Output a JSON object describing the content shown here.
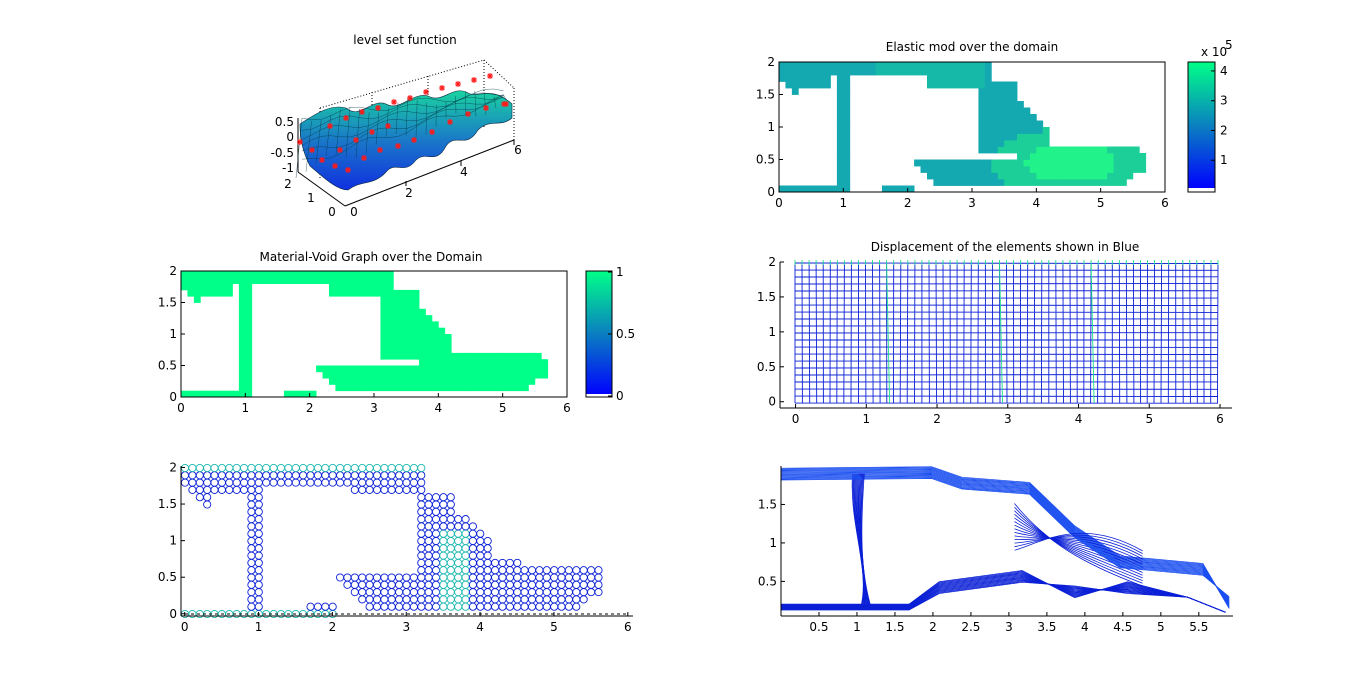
{
  "window": {
    "background": "#ffffff"
  },
  "colors": {
    "material": "#00ff88",
    "elastic_mid": "#14a8b0",
    "elastic_hot": "#22f28a",
    "mesh_blue": "#0a1fd6",
    "arrow_green": "#19e08a",
    "marker_red": "#ff1a1a",
    "colorbar_low": "#0000ff",
    "colorbar_high": "#00ff88"
  },
  "chart_data": [
    {
      "id": "level_set",
      "type": "surface3d",
      "title": "level set function",
      "x_ticks": [
        "2",
        "4",
        "6"
      ],
      "y_ticks": [
        "0",
        "1",
        "2"
      ],
      "z_ticks": [
        "0.5",
        "0",
        "-0.5",
        "-1"
      ],
      "x_zero": "0",
      "xlim": [
        0,
        6
      ],
      "ylim": [
        0,
        2
      ],
      "zlim": [
        -1,
        0.5
      ],
      "markers": "red asterisks (level set points)"
    },
    {
      "id": "elastic_mod",
      "type": "heatmap",
      "title": "Elastic mod over the domain",
      "x_ticks": [
        "0",
        "1",
        "2",
        "3",
        "4",
        "5",
        "6"
      ],
      "y_ticks": [
        "0",
        "0.5",
        "1",
        "1.5",
        "2"
      ],
      "xlim": [
        0,
        6
      ],
      "ylim": [
        0,
        2
      ],
      "colorbar": {
        "ticks": [
          "1",
          "2",
          "3",
          "4"
        ],
        "exponent_base": "x 10",
        "exponent": "5",
        "range": [
          0,
          430000
        ]
      }
    },
    {
      "id": "material_void",
      "type": "heatmap",
      "title": "Material-Void Graph over the Domain",
      "x_ticks": [
        "0",
        "1",
        "2",
        "3",
        "4",
        "5",
        "6"
      ],
      "y_ticks": [
        "0",
        "0.5",
        "1",
        "1.5",
        "2"
      ],
      "xlim": [
        0,
        6
      ],
      "ylim": [
        0,
        2
      ],
      "colorbar": {
        "ticks": [
          "0",
          "0.5",
          "1"
        ],
        "range": [
          0,
          1
        ]
      }
    },
    {
      "id": "displacement",
      "type": "mesh",
      "title": "Displacement of the elements shown in Blue",
      "x_ticks": [
        "0",
        "1",
        "2",
        "3",
        "4",
        "5",
        "6"
      ],
      "y_ticks": [
        "0",
        "0.5",
        "1",
        "1.5",
        "2"
      ],
      "xlim": [
        0,
        6
      ],
      "ylim": [
        0,
        2
      ],
      "grid": {
        "nx": 60,
        "ny": 20
      }
    },
    {
      "id": "nodal_density",
      "type": "scatter",
      "title": "",
      "x_ticks": [
        "0",
        "1",
        "2",
        "3",
        "4",
        "5",
        "6"
      ],
      "y_ticks": [
        "0",
        "0.5",
        "1",
        "1.5",
        "2"
      ],
      "xlim": [
        0,
        6
      ],
      "ylim": [
        0,
        2
      ],
      "marker": "open circles + crosses"
    },
    {
      "id": "contour",
      "type": "contour",
      "title": "",
      "x_ticks": [
        "0.5",
        "1",
        "1.5",
        "2",
        "2.5",
        "3",
        "3.5",
        "4",
        "4.5",
        "5",
        "5.5"
      ],
      "y_ticks": [
        "0.5",
        "1",
        "1.5"
      ],
      "xlim": [
        0,
        6
      ],
      "ylim": [
        0,
        2
      ]
    }
  ]
}
